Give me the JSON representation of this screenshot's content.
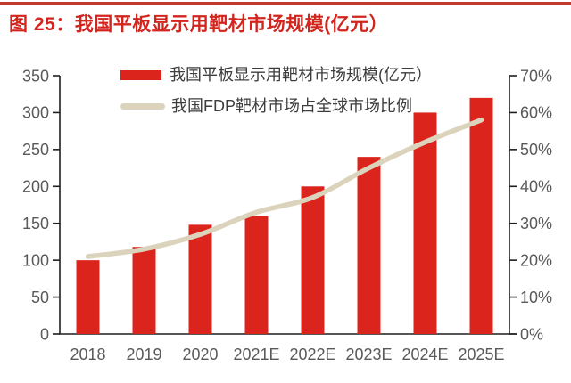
{
  "header": {
    "title": "图 25：我国平板显示用靶材市场规模(亿元）"
  },
  "colors": {
    "top_rule": "#c43a2e",
    "title": "#d2251e",
    "bar": "#db241c",
    "line": "#dcd3bc",
    "axis_line": "#1f1f1f",
    "tick_text": "#595959",
    "legend_text": "#3d3d3d"
  },
  "chart_data": {
    "type": "bar",
    "title": "图 25：我国平板显示用靶材市场规模(亿元）",
    "categories": [
      "2018",
      "2019",
      "2020",
      "2021E",
      "2022E",
      "2023E",
      "2024E",
      "2025E"
    ],
    "series": [
      {
        "name": "我国平板显示用靶材市场规模(亿元）",
        "type": "bar",
        "axis": "left",
        "color": "#db241c",
        "values": [
          100,
          118,
          148,
          160,
          200,
          240,
          300,
          320
        ]
      },
      {
        "name": "我国FDP靶材市场占全球市场比例",
        "type": "line",
        "axis": "right",
        "color": "#dcd3bc",
        "unit": "%",
        "values": [
          21,
          23,
          27,
          33,
          37,
          45,
          52,
          58
        ]
      }
    ],
    "left_axis": {
      "min": 0,
      "max": 350,
      "step": 50,
      "tick_labels": [
        "0",
        "50",
        "100",
        "150",
        "200",
        "250",
        "300",
        "350"
      ]
    },
    "right_axis": {
      "min": 0,
      "max": 70,
      "step": 10,
      "tick_labels": [
        "0%",
        "10%",
        "20%",
        "30%",
        "40%",
        "50%",
        "60%",
        "70%"
      ]
    },
    "legend_position": "top-center",
    "grid": false
  }
}
